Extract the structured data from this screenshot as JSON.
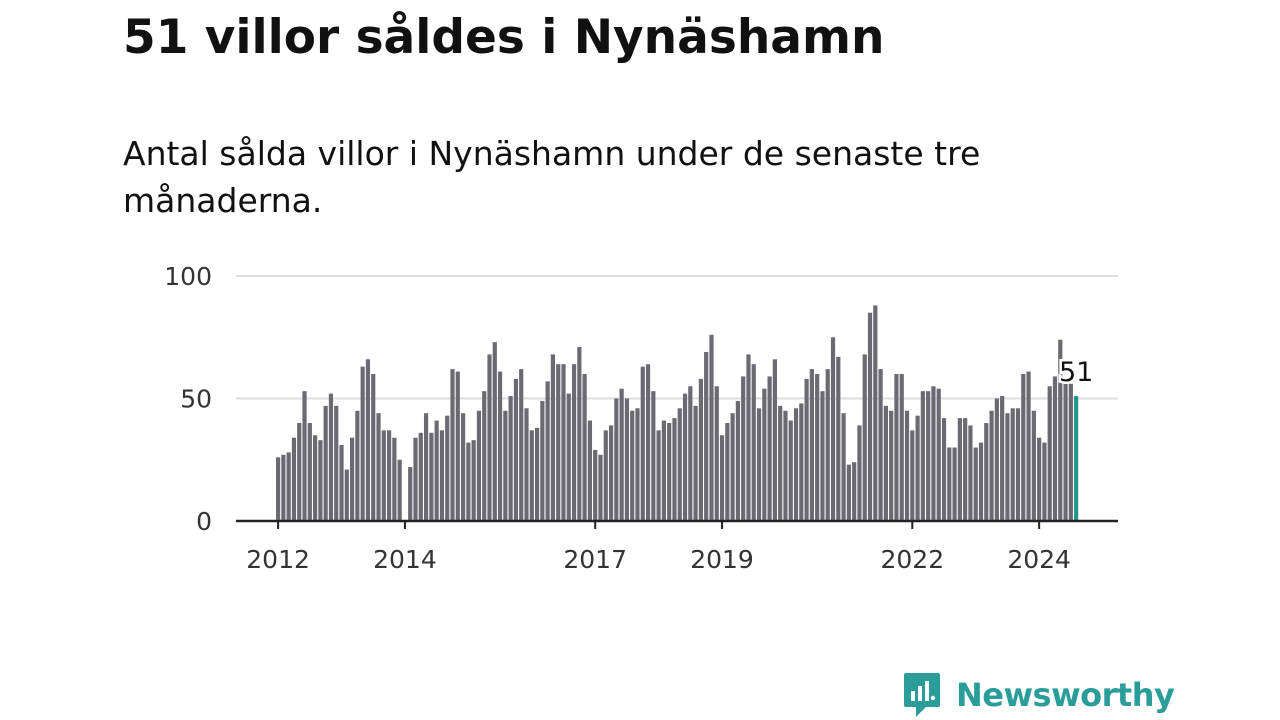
{
  "title": "51 villor såldes i Nynäshamn",
  "subtitle": "Antal sålda villor i Nynäshamn under de senaste tre månaderna.",
  "brand": {
    "name": "Newsworthy",
    "color": "#2a9d9a"
  },
  "colors": {
    "bar": "#6b6a73",
    "highlight": "#23978f",
    "grid": "#dddddd",
    "axis": "#222222",
    "tick_text": "#333333",
    "text": "#111111"
  },
  "chart_data": {
    "type": "bar",
    "title": "51 villor såldes i Nynäshamn",
    "subtitle": "Antal sålda villor i Nynäshamn under de senaste tre månaderna.",
    "xlabel": "",
    "ylabel": "",
    "ylim": [
      0,
      100
    ],
    "yticks": [
      0,
      50,
      100
    ],
    "grid": true,
    "start": "2012-01",
    "x_ticks": [
      {
        "label": "2012",
        "index": 0
      },
      {
        "label": "2014",
        "index": 24
      },
      {
        "label": "2017",
        "index": 60
      },
      {
        "label": "2019",
        "index": 84
      },
      {
        "label": "2022",
        "index": 120
      },
      {
        "label": "2024",
        "index": 144
      }
    ],
    "values": [
      26,
      27,
      28,
      34,
      40,
      53,
      40,
      35,
      33,
      47,
      52,
      47,
      31,
      21,
      34,
      45,
      63,
      66,
      60,
      44,
      37,
      37,
      34,
      25,
      0,
      22,
      34,
      36,
      44,
      36,
      41,
      37,
      43,
      62,
      61,
      44,
      32,
      33,
      45,
      53,
      68,
      73,
      61,
      45,
      51,
      58,
      62,
      46,
      37,
      38,
      49,
      57,
      68,
      64,
      64,
      52,
      64,
      71,
      60,
      41,
      29,
      27,
      37,
      39,
      50,
      54,
      50,
      45,
      46,
      63,
      64,
      53,
      37,
      41,
      40,
      42,
      46,
      52,
      55,
      47,
      58,
      69,
      76,
      55,
      35,
      40,
      44,
      49,
      59,
      68,
      64,
      46,
      54,
      59,
      66,
      47,
      45,
      41,
      46,
      48,
      58,
      62,
      60,
      53,
      62,
      75,
      67,
      44,
      23,
      24,
      39,
      68,
      85,
      88,
      62,
      47,
      45,
      60,
      60,
      45,
      37,
      43,
      53,
      53,
      55,
      54,
      42,
      30,
      30,
      42,
      42,
      39,
      30,
      32,
      40,
      45,
      50,
      51,
      44,
      46,
      46,
      60,
      61,
      45,
      34,
      32,
      55,
      59,
      74,
      56,
      56,
      51
    ],
    "highlight_index": 151,
    "highlight_label": "51"
  }
}
